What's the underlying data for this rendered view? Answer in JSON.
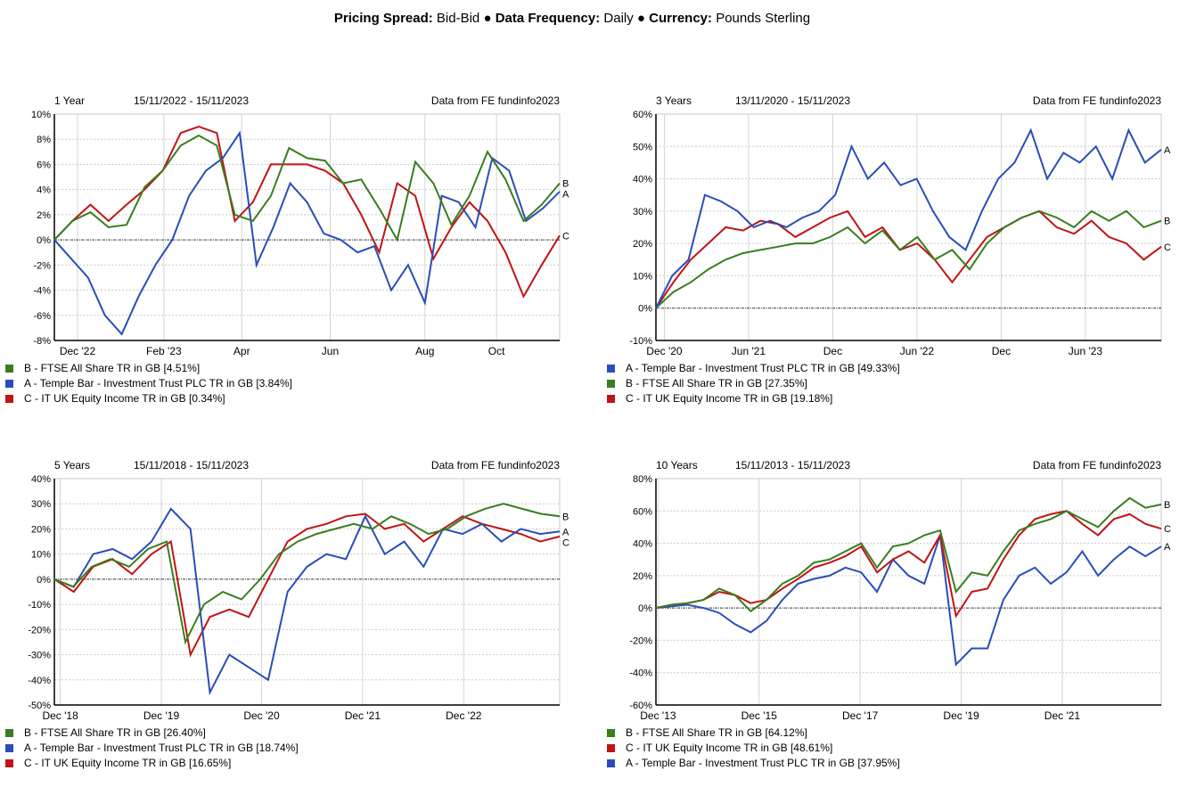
{
  "header": {
    "l1": "Pricing Spread:",
    "v1": "Bid-Bid",
    "sep1": "●",
    "l2": "Data Frequency:",
    "v2": "Daily",
    "sep2": "●",
    "l3": "Currency:",
    "v3": "Pounds Sterling"
  },
  "colors": {
    "A": "#2a4db8",
    "B": "#3a7d1e",
    "C": "#c01414"
  },
  "chart_data": [
    {
      "type": "line",
      "period": "1 Year",
      "dates": "15/11/2022 - 15/11/2023",
      "source": "Data from FE fundinfo2023",
      "ylim": [
        -8,
        10
      ],
      "yticks": [
        -8,
        -6,
        -4,
        -2,
        0,
        2,
        4,
        6,
        8,
        10
      ],
      "xlim": [
        0,
        12
      ],
      "xticks": [
        {
          "x": 0.55,
          "label": "Dec '22"
        },
        {
          "x": 2.6,
          "label": "Feb '23"
        },
        {
          "x": 4.45,
          "label": "Apr"
        },
        {
          "x": 6.55,
          "label": "Jun"
        },
        {
          "x": 8.8,
          "label": "Aug"
        },
        {
          "x": 10.5,
          "label": "Oct"
        }
      ],
      "series": [
        {
          "key": "B",
          "name": "B - FTSE All Share TR in GB [4.51%]",
          "values": [
            0,
            1.5,
            2.2,
            1.0,
            1.2,
            4.2,
            5.5,
            7.5,
            8.3,
            7.5,
            2.0,
            1.5,
            3.5,
            7.3,
            6.5,
            6.3,
            4.5,
            4.8,
            2.5,
            0,
            6.2,
            4.5,
            1.2,
            3.5,
            7.0,
            4.8,
            1.5,
            2.8,
            4.5
          ]
        },
        {
          "key": "A",
          "name": "A - Temple Bar - Investment Trust PLC TR in GB [3.84%]",
          "values": [
            0,
            -1.5,
            -3,
            -6,
            -7.5,
            -4.5,
            -2,
            0,
            3.5,
            5.5,
            6.5,
            8.5,
            -2,
            1,
            4.5,
            3,
            0.5,
            0,
            -1,
            -0.5,
            -4,
            -2,
            -5,
            3.5,
            3,
            1,
            6.5,
            5.5,
            1.5,
            2.5,
            3.84
          ]
        },
        {
          "key": "C",
          "name": "C - IT UK Equity Income TR in GB [0.34%]",
          "values": [
            0,
            1.5,
            2.8,
            1.5,
            2.8,
            4,
            5.5,
            8.5,
            9,
            8.5,
            1.5,
            3,
            6,
            6,
            6,
            5.5,
            4.5,
            2,
            -1,
            4.5,
            3.5,
            -1.5,
            1,
            3,
            1.5,
            -1,
            -4.5,
            -2,
            0.34
          ]
        }
      ]
    },
    {
      "type": "line",
      "period": "3 Years",
      "dates": "13/11/2020 - 15/11/2023",
      "source": "Data from FE fundinfo2023",
      "ylim": [
        -10,
        60
      ],
      "yticks": [
        -10,
        0,
        10,
        20,
        30,
        40,
        50,
        60
      ],
      "xlim": [
        0,
        36
      ],
      "xticks": [
        {
          "x": 0.6,
          "label": "Dec '20"
        },
        {
          "x": 6.6,
          "label": "Jun '21"
        },
        {
          "x": 12.6,
          "label": "Dec"
        },
        {
          "x": 18.6,
          "label": "Jun '22"
        },
        {
          "x": 24.6,
          "label": "Dec"
        },
        {
          "x": 30.6,
          "label": "Jun '23"
        }
      ],
      "series": [
        {
          "key": "A",
          "name": "A - Temple Bar - Investment Trust PLC TR in GB [49.33%]",
          "values": [
            0,
            10,
            15,
            35,
            33,
            30,
            25,
            27,
            25,
            28,
            30,
            35,
            50,
            40,
            45,
            38,
            40,
            30,
            22,
            18,
            30,
            40,
            45,
            55,
            40,
            48,
            45,
            50,
            40,
            55,
            45,
            49
          ]
        },
        {
          "key": "B",
          "name": "B - FTSE All Share TR in GB [27.35%]",
          "values": [
            0,
            5,
            8,
            12,
            15,
            17,
            18,
            19,
            20,
            20,
            22,
            25,
            20,
            24,
            18,
            22,
            15,
            18,
            12,
            20,
            25,
            28,
            30,
            28,
            25,
            30,
            27,
            30,
            25,
            27
          ]
        },
        {
          "key": "C",
          "name": "C - IT UK Equity Income TR in GB [19.18%]",
          "values": [
            0,
            8,
            15,
            20,
            25,
            24,
            27,
            26,
            22,
            25,
            28,
            30,
            22,
            25,
            18,
            20,
            15,
            8,
            15,
            22,
            25,
            28,
            30,
            25,
            23,
            27,
            22,
            20,
            15,
            19
          ]
        }
      ]
    },
    {
      "type": "line",
      "period": "5 Years",
      "dates": "15/11/2018 - 15/11/2023",
      "source": "Data from FE fundinfo2023",
      "ylim": [
        -50,
        40
      ],
      "yticks": [
        -50,
        -40,
        -30,
        -20,
        -10,
        0,
        10,
        20,
        30,
        40
      ],
      "xlim": [
        0,
        60
      ],
      "xticks": [
        {
          "x": 0.7,
          "label": "Dec '18"
        },
        {
          "x": 12.7,
          "label": "Dec '19"
        },
        {
          "x": 24.6,
          "label": "Dec '20"
        },
        {
          "x": 36.6,
          "label": "Dec '21"
        },
        {
          "x": 48.6,
          "label": "Dec '22"
        }
      ],
      "series": [
        {
          "key": "B",
          "name": "B - FTSE All Share TR in GB [26.40%]",
          "values": [
            0,
            -3,
            5,
            8,
            5,
            12,
            15,
            -25,
            -10,
            -5,
            -8,
            0,
            10,
            15,
            18,
            20,
            22,
            20,
            25,
            22,
            18,
            20,
            25,
            28,
            30,
            28,
            26,
            25
          ]
        },
        {
          "key": "A",
          "name": "A - Temple Bar - Investment Trust PLC TR in GB [18.74%]",
          "values": [
            0,
            -3,
            10,
            12,
            8,
            15,
            28,
            20,
            -45,
            -30,
            -35,
            -40,
            -5,
            5,
            10,
            8,
            25,
            10,
            15,
            5,
            20,
            18,
            22,
            15,
            20,
            18,
            19
          ]
        },
        {
          "key": "C",
          "name": "C - IT UK Equity Income TR in GB [16.65%]",
          "values": [
            0,
            -5,
            5,
            8,
            2,
            10,
            15,
            -30,
            -15,
            -12,
            -15,
            0,
            15,
            20,
            22,
            25,
            26,
            20,
            22,
            15,
            20,
            25,
            22,
            20,
            18,
            15,
            17
          ]
        }
      ]
    },
    {
      "type": "line",
      "period": "10 Years",
      "dates": "15/11/2013 - 15/11/2023",
      "source": "Data from FE fundinfo2023",
      "ylim": [
        -60,
        80
      ],
      "yticks": [
        -60,
        -40,
        -20,
        0,
        20,
        40,
        60,
        80
      ],
      "xlim": [
        0,
        120
      ],
      "xticks": [
        {
          "x": 0.5,
          "label": "Dec '13"
        },
        {
          "x": 24.5,
          "label": "Dec '15"
        },
        {
          "x": 48.5,
          "label": "Dec '17"
        },
        {
          "x": 72.5,
          "label": "Dec '19"
        },
        {
          "x": 96.5,
          "label": "Dec '21"
        }
      ],
      "series": [
        {
          "key": "B",
          "name": "B - FTSE All Share TR in GB [64.12%]",
          "values": [
            0,
            2,
            3,
            5,
            12,
            8,
            -2,
            5,
            15,
            20,
            28,
            30,
            35,
            40,
            25,
            38,
            40,
            45,
            48,
            10,
            22,
            20,
            35,
            48,
            52,
            55,
            60,
            55,
            50,
            60,
            68,
            62,
            64
          ]
        },
        {
          "key": "C",
          "name": "C - IT UK Equity Income TR in GB [48.61%]",
          "values": [
            0,
            2,
            3,
            5,
            10,
            8,
            3,
            5,
            12,
            18,
            25,
            28,
            32,
            38,
            22,
            30,
            35,
            28,
            45,
            -5,
            10,
            12,
            30,
            45,
            55,
            58,
            60,
            52,
            45,
            55,
            58,
            52,
            49
          ]
        },
        {
          "key": "A",
          "name": "A - Temple Bar - Investment Trust PLC TR in GB [37.95%]",
          "values": [
            0,
            1,
            2,
            0,
            -3,
            -10,
            -15,
            -8,
            5,
            15,
            18,
            20,
            25,
            22,
            10,
            30,
            20,
            15,
            45,
            -35,
            -25,
            -25,
            5,
            20,
            25,
            15,
            22,
            35,
            20,
            30,
            38,
            32,
            38
          ]
        }
      ]
    }
  ]
}
